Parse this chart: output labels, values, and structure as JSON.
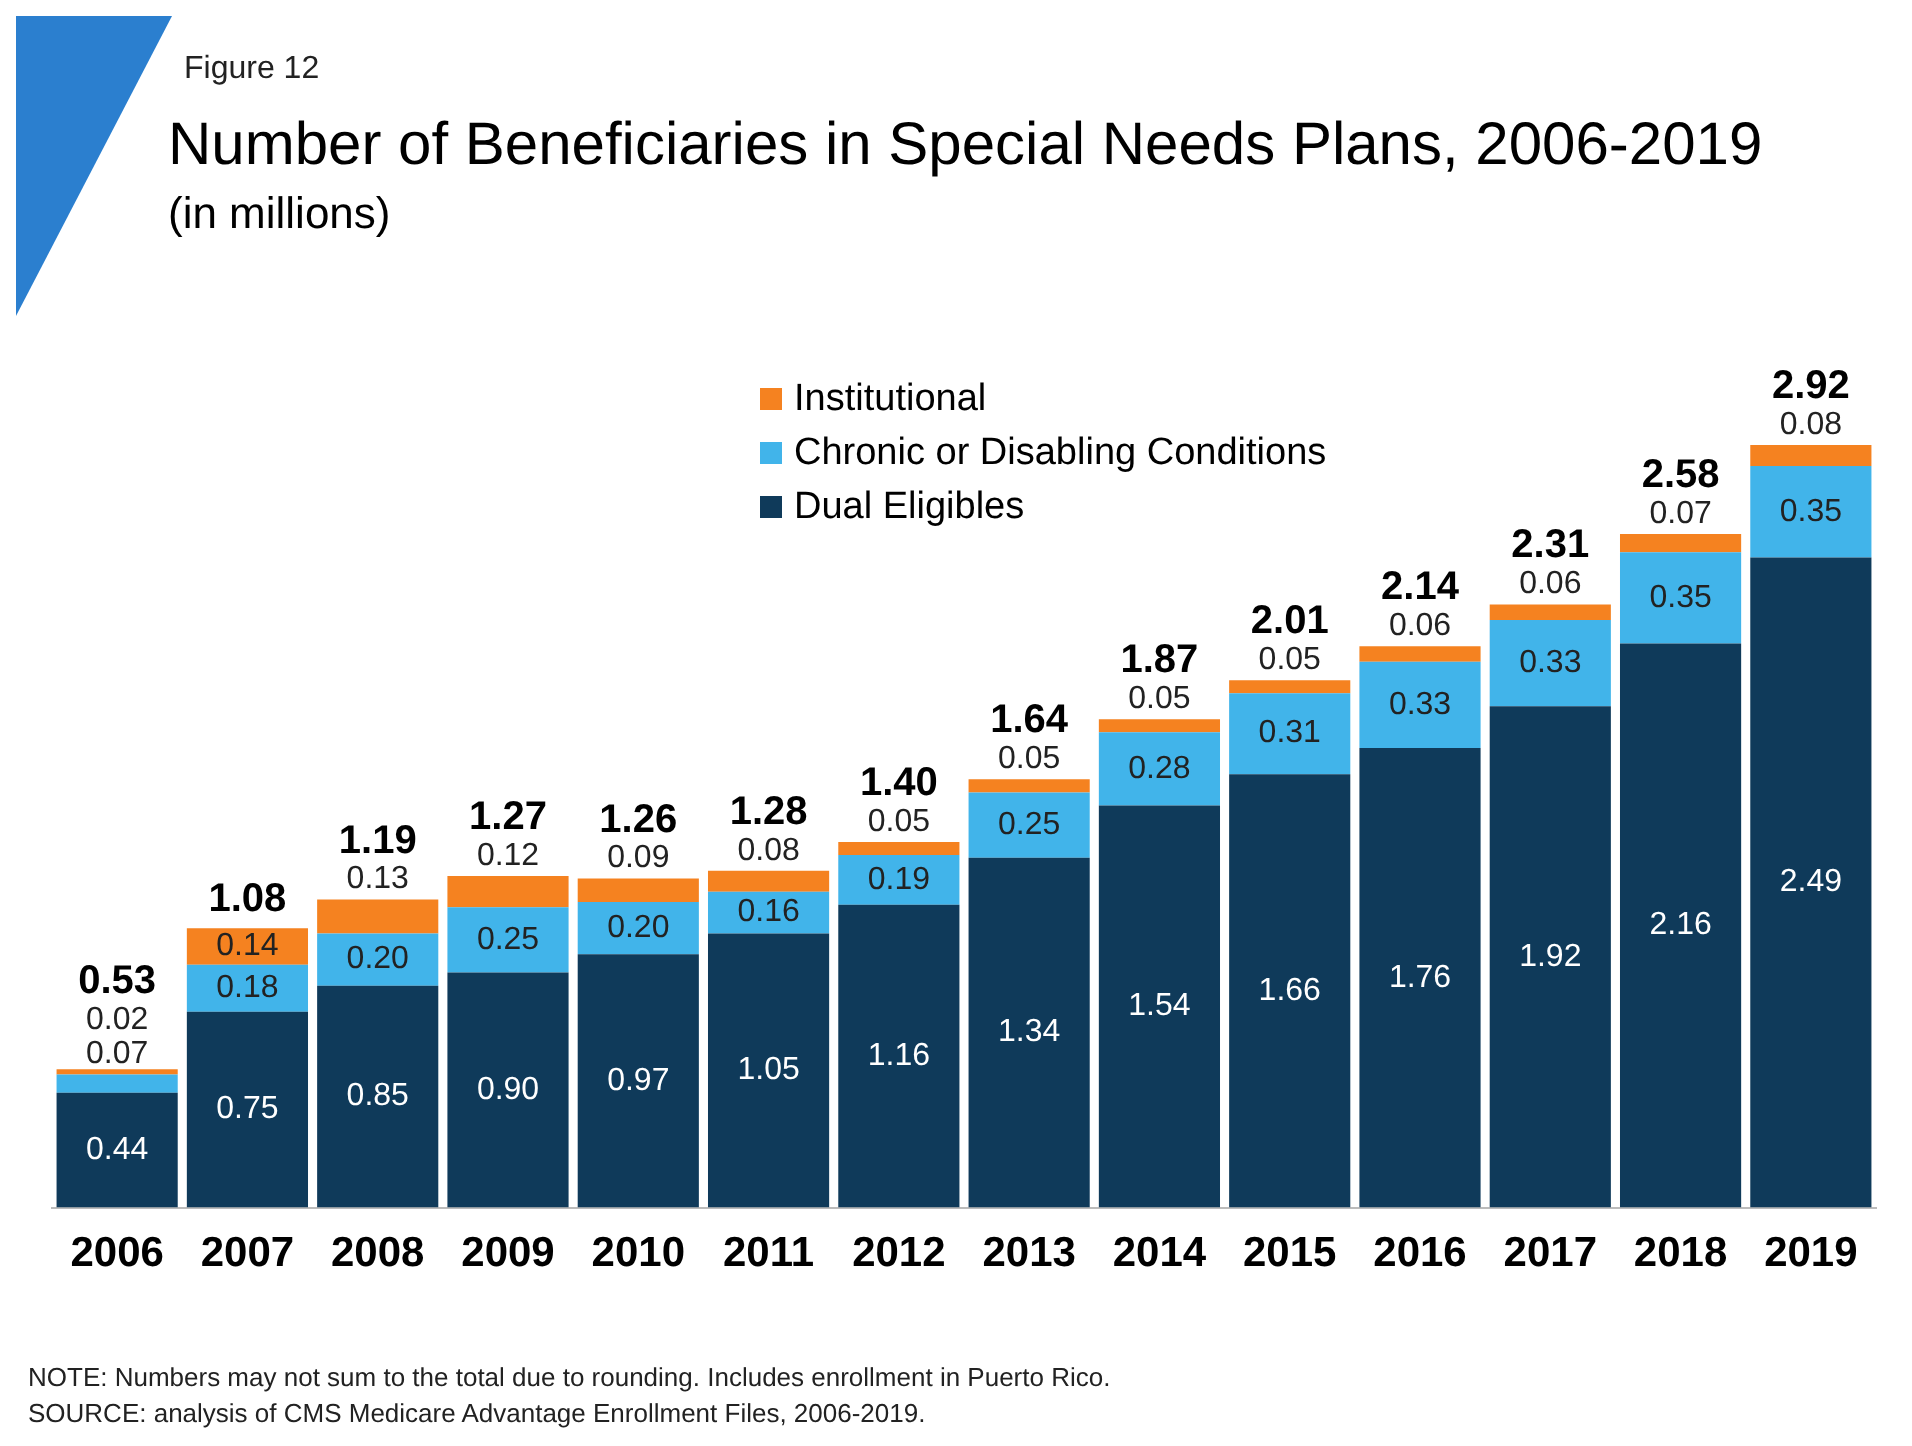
{
  "chart_data": {
    "type": "bar",
    "title": "Number of Beneficiaries in Special Needs Plans, 2006-2019",
    "subtitle": "(in millions)",
    "annotations": [
      "Figure 12",
      "NOTE: Numbers may not sum to the total due to rounding. Includes enrollment in Puerto Rico.",
      "SOURCE: analysis of CMS Medicare Advantage Enrollment Files, 2006-2019."
    ],
    "categories": [
      "2006",
      "2007",
      "2008",
      "2009",
      "2010",
      "2011",
      "2012",
      "2013",
      "2014",
      "2015",
      "2016",
      "2017",
      "2018",
      "2019"
    ],
    "series": [
      {
        "name": "Dual Eligibles",
        "color": "#0f3a5a",
        "values": [
          0.44,
          0.75,
          0.85,
          0.9,
          0.97,
          1.05,
          1.16,
          1.34,
          1.54,
          1.66,
          1.76,
          1.92,
          2.16,
          2.49
        ],
        "value_labels": [
          "0.44",
          "0.75",
          "0.85",
          "0.90",
          "0.97",
          "1.05",
          "1.16",
          "1.34",
          "1.54",
          "1.66",
          "1.76",
          "1.92",
          "2.16",
          "2.49"
        ]
      },
      {
        "name": "Chronic or Disabling Conditions",
        "color": "#41b4ea",
        "values": [
          0.07,
          0.18,
          0.2,
          0.25,
          0.2,
          0.16,
          0.19,
          0.25,
          0.28,
          0.31,
          0.33,
          0.33,
          0.35,
          0.35
        ],
        "value_labels": [
          "0.07",
          "0.18",
          "0.20",
          "0.25",
          "0.20",
          "0.16",
          "0.19",
          "0.25",
          "0.28",
          "0.31",
          "0.33",
          "0.33",
          "0.35",
          "0.35"
        ]
      },
      {
        "name": "Institutional",
        "color": "#f58220",
        "values": [
          0.02,
          0.14,
          0.13,
          0.12,
          0.09,
          0.08,
          0.05,
          0.05,
          0.05,
          0.05,
          0.06,
          0.06,
          0.07,
          0.08
        ],
        "value_labels": [
          "0.02",
          "0.14",
          "0.13",
          "0.12",
          "0.09",
          "0.08",
          "0.05",
          "0.05",
          "0.05",
          "0.05",
          "0.06",
          "0.06",
          "0.07",
          "0.08"
        ]
      }
    ],
    "stacked": true,
    "totals": [
      "0.53",
      "1.08",
      "1.19",
      "1.27",
      "1.26",
      "1.28",
      "1.40",
      "1.64",
      "1.87",
      "2.01",
      "2.14",
      "2.31",
      "2.58",
      "2.92"
    ],
    "legend": "top"
  }
}
